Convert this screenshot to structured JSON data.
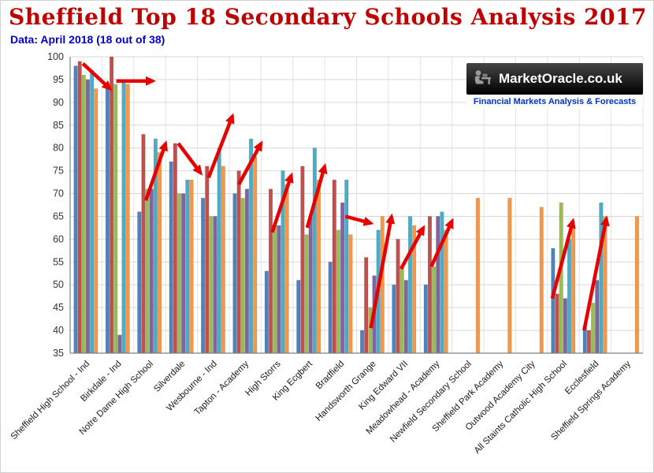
{
  "page": {
    "title": "Sheffield Top 18 Secondary Schools Analysis 2017",
    "subtitle": "Data: April 2018 (18 out of 38)"
  },
  "logo": {
    "brand": "MarketOracle.co.uk",
    "tagline": "Financial Markets Analysis & Forecasts"
  },
  "chart_data": {
    "type": "bar",
    "title": "Sheffield Top 18 Secondary Schools Analysis 2017",
    "xlabel": "",
    "ylabel": "",
    "ylim": [
      35,
      100
    ],
    "ytick_step": 5,
    "yticks": [
      35,
      40,
      45,
      50,
      55,
      60,
      65,
      70,
      75,
      80,
      85,
      90,
      95,
      100
    ],
    "grid": true,
    "legend_position": "none",
    "categories": [
      "Sheffield High School - Ind",
      "Birkdale - Ind",
      "Notre Dame High School",
      "Silverdale",
      "Wesbourne - Ind",
      "Tapton - Academy",
      "High Storrs",
      "King Ecgbert",
      "Bradfield",
      "Handsworth Grange",
      "King Edward VII",
      "Meadowhead - Academy",
      "Newfield Secondary School",
      "Sheffield Park Academy",
      "Outwood Academy City",
      "All Staints Catholic High School",
      "Ecclesfield",
      "Sheffield Springs Academy"
    ],
    "series": [
      {
        "color": "#4F81BD",
        "values": [
          98,
          94,
          66,
          77,
          69,
          70,
          53,
          51,
          55,
          40,
          50,
          50,
          null,
          null,
          null,
          58,
          41,
          null
        ]
      },
      {
        "color": "#C0504D",
        "values": [
          99,
          100,
          83,
          81,
          76,
          75,
          71,
          76,
          73,
          56,
          60,
          65,
          null,
          null,
          null,
          48,
          40,
          null
        ]
      },
      {
        "color": "#9BBB59",
        "values": [
          96,
          94,
          71,
          70,
          65,
          69,
          63,
          61,
          62,
          45,
          54,
          54,
          null,
          null,
          null,
          68,
          46,
          null
        ]
      },
      {
        "color": "#8064A2",
        "values": [
          95,
          39,
          71,
          70,
          65,
          71,
          63,
          65,
          68,
          52,
          51,
          65,
          null,
          null,
          null,
          47,
          51,
          null
        ]
      },
      {
        "color": "#4BACC6",
        "values": [
          97,
          95,
          82,
          73,
          80,
          82,
          75,
          80,
          73,
          62,
          65,
          66,
          null,
          null,
          null,
          60,
          68,
          null
        ]
      },
      {
        "color": "#F79646",
        "values": [
          93,
          94,
          79,
          73,
          76,
          78,
          72,
          73,
          61,
          65,
          63,
          62,
          69,
          69,
          67,
          63,
          65,
          65
        ]
      }
    ],
    "annotations": {
      "color": "#E60000",
      "arrows": [
        {
          "gx1": 0.4,
          "v1": 98.5,
          "gx2": 1.25,
          "v2": 93.0
        },
        {
          "gx1": 1.45,
          "v1": 94.7,
          "gx2": 2.6,
          "v2": 94.7
        },
        {
          "gx1": 2.38,
          "v1": 68.5,
          "gx2": 3.0,
          "v2": 81.0
        },
        {
          "gx1": 3.4,
          "v1": 81.0,
          "gx2": 4.1,
          "v2": 74.5
        },
        {
          "gx1": 4.35,
          "v1": 73.5,
          "gx2": 5.1,
          "v2": 87.0
        },
        {
          "gx1": 5.3,
          "v1": 72.0,
          "gx2": 6.0,
          "v2": 81.0
        },
        {
          "gx1": 6.35,
          "v1": 61.5,
          "gx2": 6.95,
          "v2": 74.0
        },
        {
          "gx1": 7.45,
          "v1": 62.5,
          "gx2": 8.0,
          "v2": 76.0
        },
        {
          "gx1": 8.65,
          "v1": 65.0,
          "gx2": 9.45,
          "v2": 63.5
        },
        {
          "gx1": 9.45,
          "v1": 40.5,
          "gx2": 10.1,
          "v2": 65.0
        },
        {
          "gx1": 10.4,
          "v1": 53.5,
          "gx2": 11.1,
          "v2": 62.5
        },
        {
          "gx1": 11.35,
          "v1": 54.0,
          "gx2": 12.0,
          "v2": 64.0
        },
        {
          "gx1": 15.15,
          "v1": 47.0,
          "gx2": 15.8,
          "v2": 64.0
        },
        {
          "gx1": 16.15,
          "v1": 40.0,
          "gx2": 16.85,
          "v2": 64.5
        }
      ]
    }
  }
}
